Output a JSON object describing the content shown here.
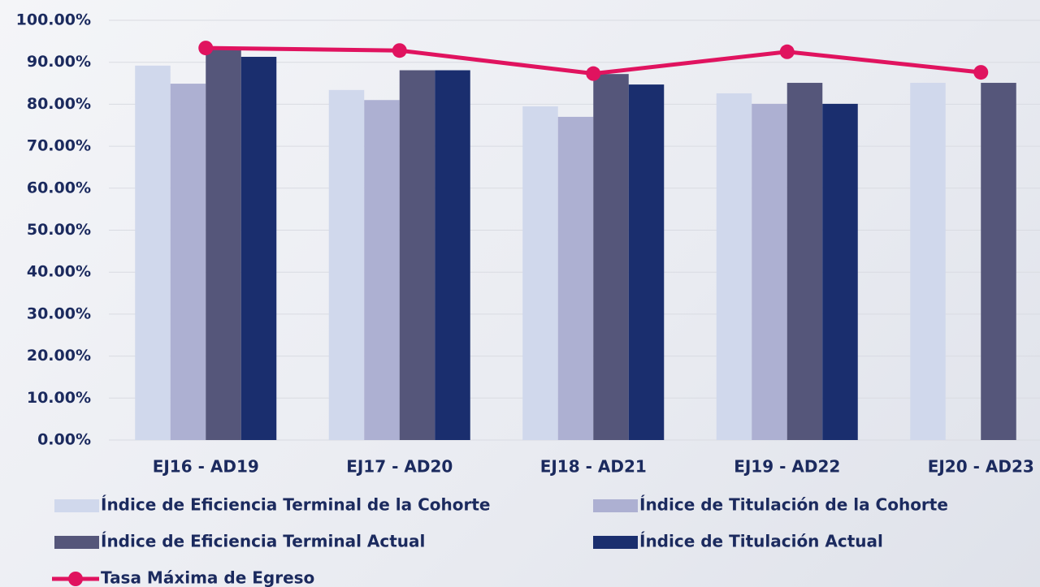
{
  "chart_data": {
    "type": "bar",
    "categories": [
      "EJ16 - AD19",
      "EJ17 - AD20",
      "EJ18 - AD21",
      "EJ19 - AD22",
      "EJ20 - AD23"
    ],
    "series": [
      {
        "name": "Índice de Eficiencia Terminal de la Cohorte",
        "color": "#d0d8ec",
        "values": [
          89.2,
          83.4,
          79.5,
          82.6,
          85.1
        ]
      },
      {
        "name": "Índice de Titulación de la Cohorte",
        "color": "#adb0d2",
        "values": [
          84.9,
          81.0,
          77.0,
          80.1,
          null
        ]
      },
      {
        "name": "Índice de Eficiencia Terminal Actual",
        "color": "#55567a",
        "values": [
          93.2,
          88.1,
          87.2,
          85.1,
          85.1
        ]
      },
      {
        "name": "Índice de Titulación Actual",
        "color": "#1a2e6e",
        "values": [
          91.3,
          88.1,
          84.7,
          80.1,
          null
        ]
      },
      {
        "name": "Tasa Máxima de Egreso",
        "color": "#e0135f",
        "type": "line",
        "values": [
          93.4,
          92.8,
          87.3,
          92.5,
          87.6
        ]
      }
    ],
    "ylim": [
      0,
      100
    ],
    "yticks": [
      {
        "value": 0,
        "label": "0.00%"
      },
      {
        "value": 10,
        "label": "10.00%"
      },
      {
        "value": 20,
        "label": "20.00%"
      },
      {
        "value": 30,
        "label": "30.00%"
      },
      {
        "value": 40,
        "label": "40.00%"
      },
      {
        "value": 50,
        "label": "50.00%"
      },
      {
        "value": 60,
        "label": "60.00%"
      },
      {
        "value": 70,
        "label": "70.00%"
      },
      {
        "value": 80,
        "label": "80.00%"
      },
      {
        "value": 90,
        "label": "90.00%"
      },
      {
        "value": 100,
        "label": "100.00%"
      }
    ],
    "grid": true
  }
}
